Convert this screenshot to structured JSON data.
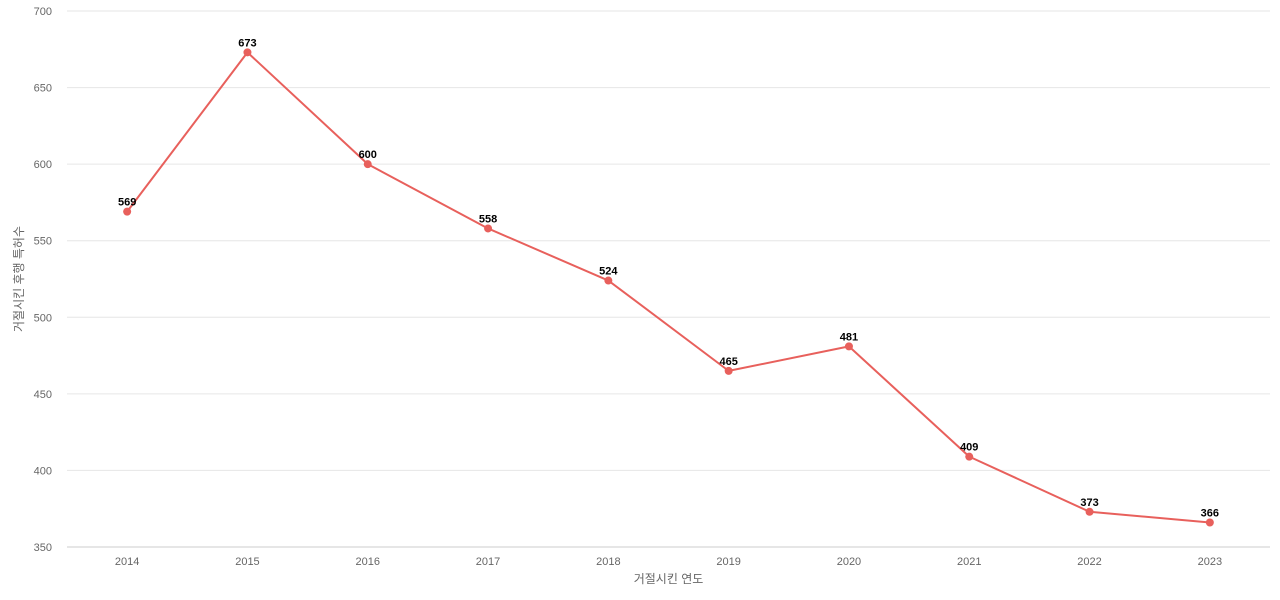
{
  "chart_data": {
    "type": "line",
    "title": "",
    "xlabel": "거절시킨 연도",
    "ylabel": "거절시킨 후행 특허수",
    "categories": [
      "2014",
      "2015",
      "2016",
      "2017",
      "2018",
      "2019",
      "2020",
      "2021",
      "2022",
      "2023"
    ],
    "series": [
      {
        "values": [
          569,
          673,
          600,
          558,
          524,
          465,
          481,
          409,
          373,
          366
        ]
      }
    ],
    "ylim": [
      350,
      700
    ],
    "yticks": [
      350,
      400,
      450,
      500,
      550,
      600,
      650,
      700
    ],
    "grid": true,
    "legend": "none",
    "line_color": "#e8605c"
  }
}
